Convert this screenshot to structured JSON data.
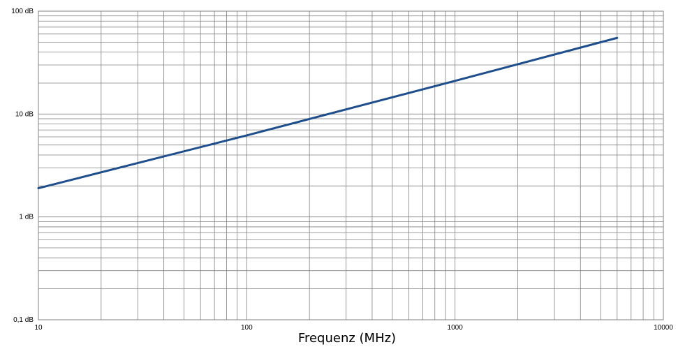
{
  "chart_data": {
    "type": "line",
    "title": "",
    "xlabel": "Frequenz (MHz)",
    "ylabel": "",
    "xscale": "log",
    "yscale": "log",
    "xlim": [
      10,
      10000
    ],
    "ylim": [
      0.1,
      100
    ],
    "grid": true,
    "x_ticks": [
      {
        "value": 10,
        "label": "10"
      },
      {
        "value": 100,
        "label": "100"
      },
      {
        "value": 1000,
        "label": "1000"
      },
      {
        "value": 10000,
        "label": "10000"
      }
    ],
    "y_ticks": [
      {
        "value": 0.1,
        "label": "0,1 dB"
      },
      {
        "value": 1,
        "label": "1 dB"
      },
      {
        "value": 10,
        "label": "10 dB"
      },
      {
        "value": 100,
        "label": "100 dB"
      }
    ],
    "series": [
      {
        "color": "#1f4e8c",
        "x": [
          10,
          100,
          1000,
          6000
        ],
        "y": [
          1.9,
          6.2,
          21,
          55
        ]
      }
    ]
  }
}
